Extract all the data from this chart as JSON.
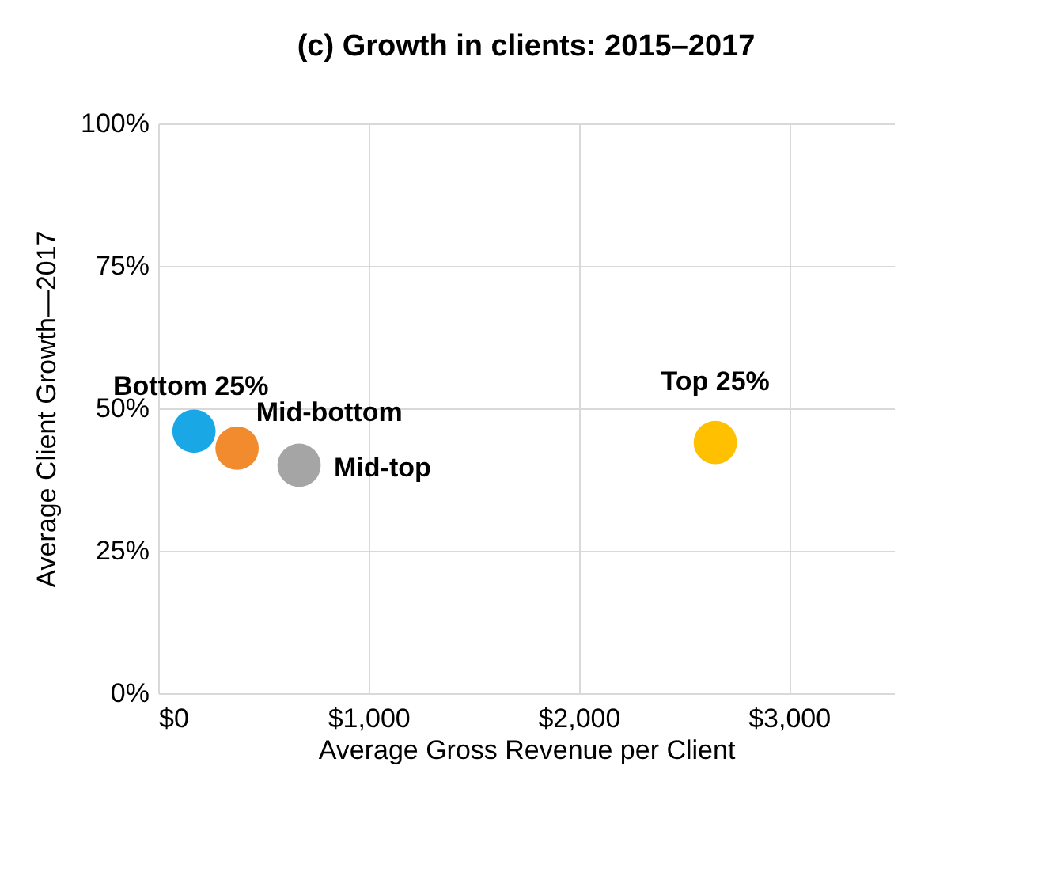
{
  "chart_data": {
    "type": "scatter",
    "title": "(c) Growth in clients: 2015–2017",
    "xlabel": "Average Gross Revenue per Client",
    "ylabel": "Average  Client Growth—2017",
    "xlim": [
      0,
      3500
    ],
    "xticks": [
      {
        "value": 0,
        "label": "$0"
      },
      {
        "value": 1000,
        "label": "$1,000"
      },
      {
        "value": 2000,
        "label": "$2,000"
      },
      {
        "value": 3000,
        "label": "$3,000"
      }
    ],
    "ylim": [
      0,
      100
    ],
    "yticks": [
      {
        "value": 0,
        "label": "0%"
      },
      {
        "value": 25,
        "label": "25%"
      },
      {
        "value": 50,
        "label": "50%"
      },
      {
        "value": 75,
        "label": "75%"
      },
      {
        "value": 100,
        "label": "100%"
      }
    ],
    "grid": true,
    "legend": false,
    "marker": "circle",
    "series": [
      {
        "name": "Bottom 25%",
        "color": "#1aa7e6",
        "x": [
          170
        ],
        "values": [
          46
        ]
      },
      {
        "name": "Mid-bottom",
        "color": "#f28a2e",
        "x": [
          375
        ],
        "values": [
          43
        ]
      },
      {
        "name": "Mid-top",
        "color": "#a5a5a5",
        "x": [
          670
        ],
        "values": [
          40
        ]
      },
      {
        "name": "Top 25%",
        "color": "#ffc000",
        "x": [
          2650
        ],
        "values": [
          44
        ]
      }
    ]
  }
}
